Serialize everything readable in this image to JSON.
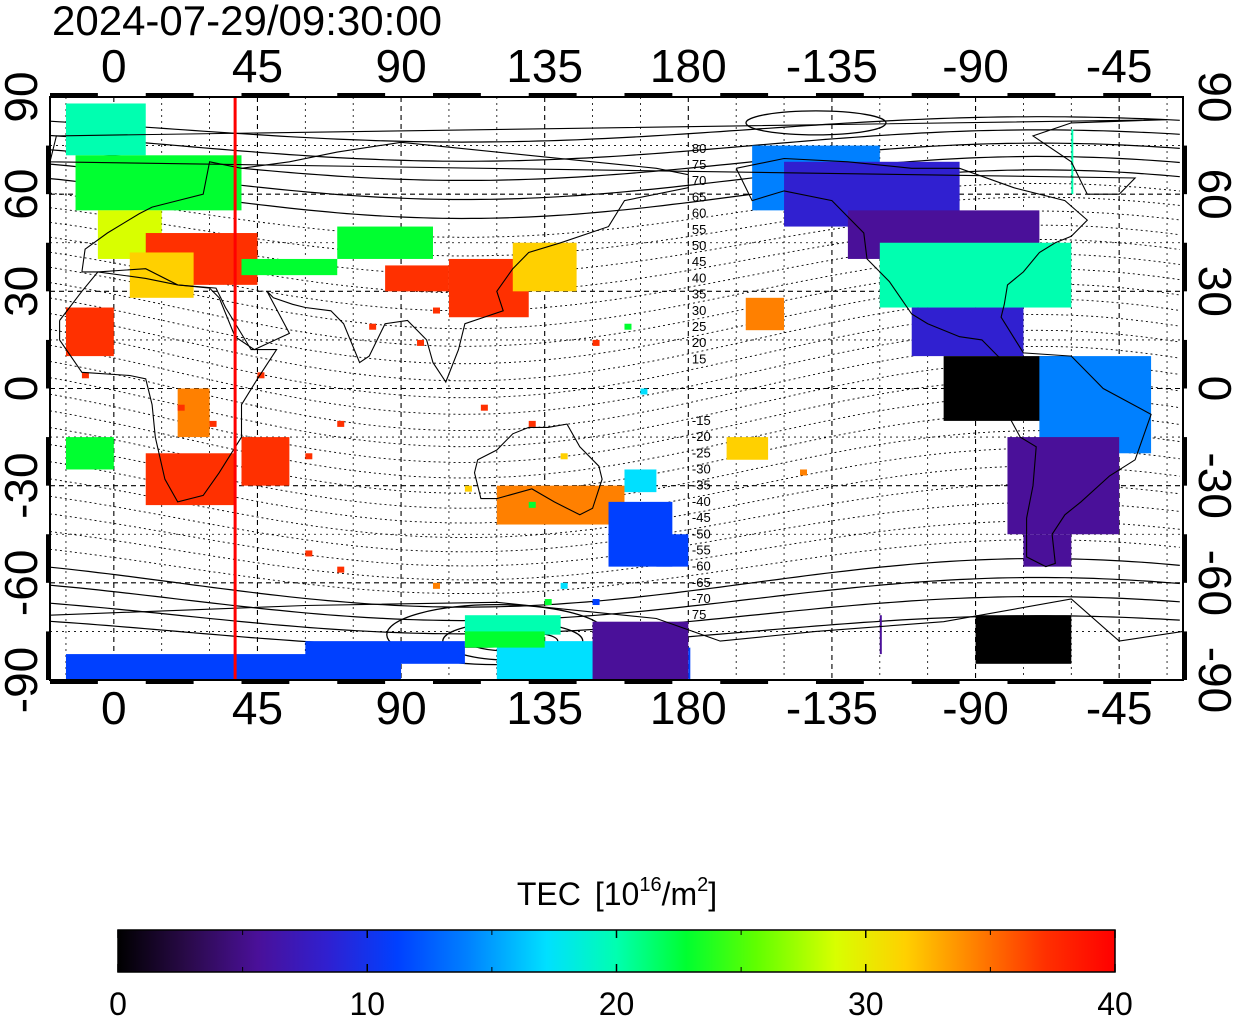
{
  "timestamp": "2024-07-29/09:30:00",
  "map": {
    "lon_ticks": [
      "0",
      "45",
      "90",
      "135",
      "180",
      "-135",
      "-90",
      "-45"
    ],
    "lat_ticks": [
      "90",
      "60",
      "30",
      "0",
      "-30",
      "-60",
      "-90"
    ],
    "lon_range": [
      -20,
      335
    ],
    "lat_range": [
      -90,
      90
    ],
    "marker_line_lon": 38,
    "marker_color": "#ff0000",
    "contour_labels_north": [
      "80",
      "75",
      "70",
      "65",
      "60",
      "55",
      "50",
      "45",
      "40",
      "35",
      "30",
      "25",
      "20",
      "15"
    ],
    "contour_labels_south": [
      "-15",
      "-20",
      "-25",
      "-30",
      "-35",
      "-40",
      "-45",
      "-50",
      "-55",
      "-60",
      "-65",
      "-70",
      "75"
    ]
  },
  "colorbar": {
    "title": "TEC",
    "unit_open": "[10",
    "unit_sup": "16",
    "unit_mid": "/m",
    "unit_sup2": "2",
    "unit_close": "]",
    "ticks": [
      "0",
      "10",
      "20",
      "30",
      "40"
    ],
    "range": [
      0,
      40
    ]
  },
  "colors": {
    "scale": [
      "#000000",
      "#2a0a4a",
      "#4a1099",
      "#3020d0",
      "#0040ff",
      "#0080ff",
      "#00e0ff",
      "#00ffb0",
      "#00ff30",
      "#60ff00",
      "#d8ff00",
      "#ffd000",
      "#ff8000",
      "#ff3000",
      "#ff0000"
    ]
  }
}
